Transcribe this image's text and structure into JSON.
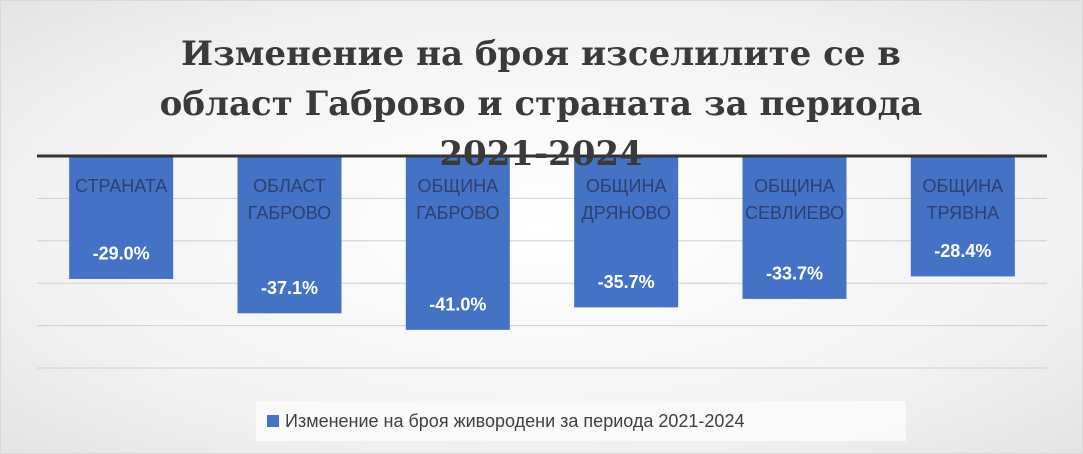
{
  "chart_data": {
    "type": "bar",
    "title": "Изменение на броя изселилите се в област Габрово и страната за периода 2021-2024",
    "categories": [
      "СТРАНАТА",
      "ОБЛАСТ ГАБРОВО",
      "ОБЩИНА ГАБРОВО",
      "ОБЩИНА ДРЯНОВО",
      "ОБЩИНА СЕВЛИЕВО",
      "ОБЩИНА ТРЯВНА"
    ],
    "series": [
      {
        "name": "Изменение на броя живородени за периода 2021-2024",
        "color": "#4472c4",
        "values": [
          -29.0,
          -37.1,
          -41.0,
          -35.7,
          -33.7,
          -28.4
        ],
        "value_labels": [
          "-29.0%",
          "-37.1%",
          "-41.0%",
          "-35.7%",
          "-33.7%",
          "-28.4%"
        ]
      }
    ],
    "ylim": [
      -50,
      0
    ],
    "yticks": [
      -50,
      -40,
      -30,
      -20,
      -10,
      0
    ],
    "grid": true,
    "legend": "bottom"
  }
}
